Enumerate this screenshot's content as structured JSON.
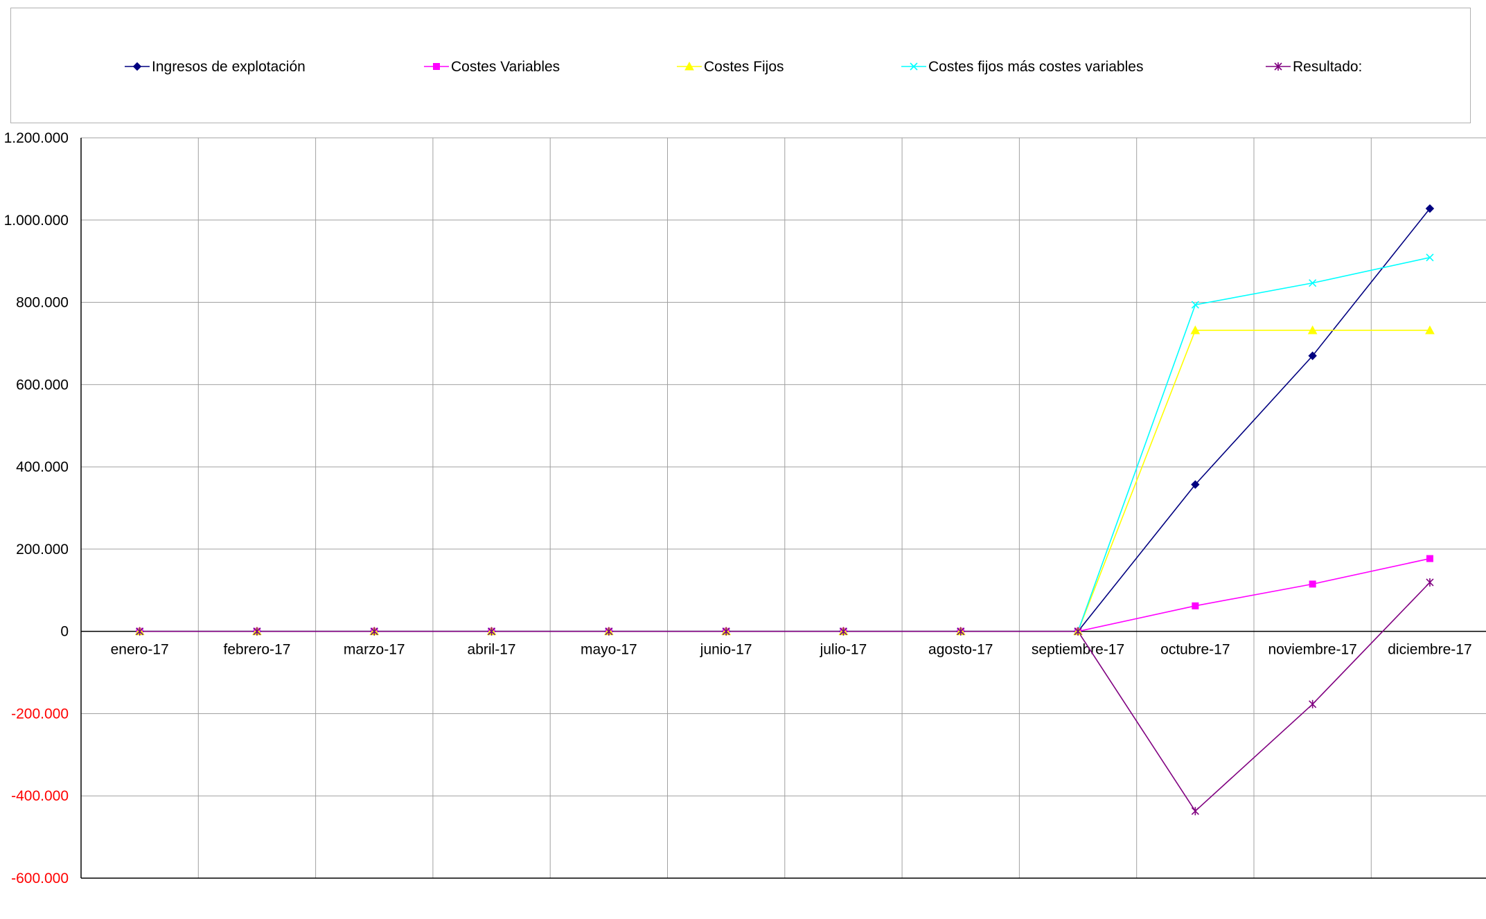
{
  "chart_data": {
    "type": "line",
    "title": "",
    "xlabel": "",
    "ylabel": "",
    "categories": [
      "enero-17",
      "febrero-17",
      "marzo-17",
      "abril-17",
      "mayo-17",
      "junio-17",
      "julio-17",
      "agosto-17",
      "septiembre-17",
      "octubre-17",
      "noviembre-17",
      "diciembre-17"
    ],
    "ylim": [
      -600000,
      1200000
    ],
    "yticks": [
      1200000,
      1000000,
      800000,
      600000,
      400000,
      200000,
      0,
      -200000,
      -400000,
      -600000
    ],
    "ytick_labels": [
      "1.200.000",
      "1.000.000",
      "800.000",
      "600.000",
      "400.000",
      "200.000",
      "0",
      "-200.000",
      "-400.000",
      "-600.000"
    ],
    "negative_tick_color": "#ff0000",
    "grid": true,
    "legend_position": "top",
    "series": [
      {
        "name": "Ingresos de explotación",
        "color": "#000080",
        "marker": "diamond",
        "values": [
          0,
          0,
          0,
          0,
          0,
          0,
          0,
          0,
          0,
          357000,
          670000,
          1028000
        ]
      },
      {
        "name": "Costes Variables",
        "color": "#ff00ff",
        "marker": "square",
        "values": [
          0,
          0,
          0,
          0,
          0,
          0,
          0,
          0,
          0,
          62000,
          115000,
          177000
        ]
      },
      {
        "name": "Costes Fijos",
        "color": "#ffff00",
        "marker": "triangle",
        "values": [
          0,
          0,
          0,
          0,
          0,
          0,
          0,
          0,
          0,
          732000,
          732000,
          732000
        ]
      },
      {
        "name": "Costes fijos más costes variables",
        "color": "#00ffff",
        "marker": "x",
        "values": [
          0,
          0,
          0,
          0,
          0,
          0,
          0,
          0,
          0,
          794000,
          847000,
          909000
        ]
      },
      {
        "name": "Resultado:",
        "color": "#800080",
        "marker": "star",
        "values": [
          0,
          0,
          0,
          0,
          0,
          0,
          0,
          0,
          0,
          -437000,
          -177000,
          119000
        ]
      }
    ]
  }
}
